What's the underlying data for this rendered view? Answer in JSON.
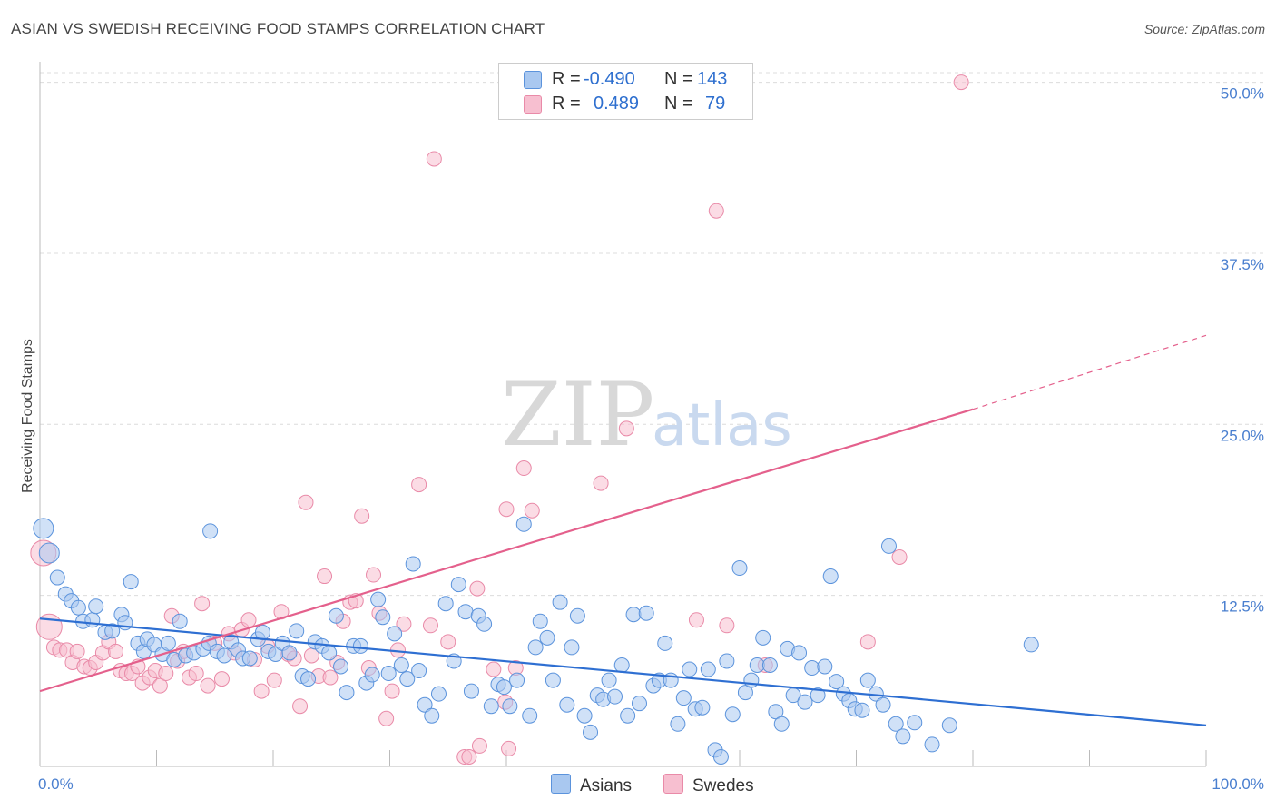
{
  "title": "ASIAN VS SWEDISH RECEIVING FOOD STAMPS CORRELATION CHART",
  "source": "Source: ZipAtlas.com",
  "watermark": {
    "zip": "ZIP",
    "atlas": "atlas"
  },
  "legend": {
    "rows": [
      {
        "r_label": "R =",
        "r_value": "-0.490",
        "n_label": "N =",
        "n_value": "143"
      },
      {
        "r_label": "R =",
        "r_value": "0.489",
        "n_label": "N =",
        "n_value": "79"
      }
    ]
  },
  "bottom_legend": {
    "asians": "Asians",
    "swedes": "Swedes"
  },
  "colors": {
    "asian_fill": "#a9c8f0",
    "asian_stroke": "#5b93dc",
    "asian_line": "#2e6fd2",
    "swede_fill": "#f7bfd0",
    "swede_stroke": "#e98aa8",
    "swede_line": "#e4608c",
    "grid": "#dcdcdc",
    "tick": "#4a7fcf"
  },
  "chart_data": {
    "type": "scatter",
    "title": "ASIAN VS SWEDISH RECEIVING FOOD STAMPS CORRELATION CHART",
    "xlabel": "",
    "ylabel": "Receiving Food Stamps",
    "xlim": [
      0,
      100
    ],
    "ylim": [
      0,
      51.5
    ],
    "x_tick_labels": [
      "0.0%",
      "100.0%"
    ],
    "y_ticks": [
      12.5,
      25.0,
      37.5,
      50.0
    ],
    "y_tick_labels": [
      "12.5%",
      "25.0%",
      "37.5%",
      "50.0%"
    ],
    "grid": true,
    "legend_position": "top-center",
    "series": [
      {
        "name": "Asians",
        "r": -0.49,
        "n": 143,
        "trend": {
          "x": [
            0,
            100
          ],
          "y": [
            10.8,
            3.0
          ]
        },
        "points": [
          [
            0.3,
            17.4
          ],
          [
            0.8,
            15.6
          ],
          [
            1.5,
            13.8
          ],
          [
            2.2,
            12.6
          ],
          [
            2.7,
            12.1
          ],
          [
            3.3,
            11.6
          ],
          [
            3.7,
            10.6
          ],
          [
            4.5,
            10.7
          ],
          [
            4.8,
            11.7
          ],
          [
            5.6,
            9.8
          ],
          [
            6.2,
            9.9
          ],
          [
            7.0,
            11.1
          ],
          [
            7.3,
            10.5
          ],
          [
            7.8,
            13.5
          ],
          [
            8.4,
            9.0
          ],
          [
            8.9,
            8.4
          ],
          [
            9.2,
            9.3
          ],
          [
            9.8,
            8.9
          ],
          [
            10.5,
            8.2
          ],
          [
            11.0,
            9.0
          ],
          [
            11.5,
            7.8
          ],
          [
            12.0,
            10.6
          ],
          [
            12.5,
            8.1
          ],
          [
            13.2,
            8.3
          ],
          [
            14.0,
            8.6
          ],
          [
            14.5,
            9.0
          ],
          [
            14.6,
            17.2
          ],
          [
            15.2,
            8.4
          ],
          [
            15.8,
            8.1
          ],
          [
            16.4,
            9.1
          ],
          [
            17.0,
            8.5
          ],
          [
            17.4,
            7.9
          ],
          [
            18.0,
            7.9
          ],
          [
            18.7,
            9.3
          ],
          [
            19.1,
            9.8
          ],
          [
            19.6,
            8.4
          ],
          [
            20.2,
            8.2
          ],
          [
            20.8,
            9.0
          ],
          [
            21.4,
            8.3
          ],
          [
            22.0,
            9.9
          ],
          [
            22.5,
            6.6
          ],
          [
            23.0,
            6.4
          ],
          [
            23.6,
            9.1
          ],
          [
            24.2,
            8.8
          ],
          [
            24.8,
            8.3
          ],
          [
            25.4,
            11.0
          ],
          [
            25.8,
            7.3
          ],
          [
            26.3,
            5.4
          ],
          [
            26.9,
            8.8
          ],
          [
            27.5,
            8.8
          ],
          [
            28.0,
            6.1
          ],
          [
            28.5,
            6.7
          ],
          [
            29.0,
            12.2
          ],
          [
            29.4,
            10.9
          ],
          [
            29.9,
            6.8
          ],
          [
            30.4,
            9.7
          ],
          [
            31.0,
            7.4
          ],
          [
            31.5,
            6.4
          ],
          [
            32.0,
            14.8
          ],
          [
            32.5,
            7.0
          ],
          [
            33.0,
            4.5
          ],
          [
            33.6,
            3.7
          ],
          [
            34.2,
            5.3
          ],
          [
            34.8,
            11.9
          ],
          [
            35.5,
            7.7
          ],
          [
            35.9,
            13.3
          ],
          [
            36.5,
            11.3
          ],
          [
            37.0,
            5.5
          ],
          [
            37.6,
            11.0
          ],
          [
            38.1,
            10.4
          ],
          [
            38.7,
            4.4
          ],
          [
            39.3,
            6.0
          ],
          [
            39.8,
            5.8
          ],
          [
            40.3,
            4.4
          ],
          [
            40.9,
            6.3
          ],
          [
            41.5,
            17.7
          ],
          [
            42.0,
            3.7
          ],
          [
            42.5,
            8.7
          ],
          [
            42.9,
            10.6
          ],
          [
            43.5,
            9.4
          ],
          [
            44.0,
            6.3
          ],
          [
            44.6,
            12.0
          ],
          [
            45.2,
            4.5
          ],
          [
            45.6,
            8.7
          ],
          [
            46.1,
            11.0
          ],
          [
            46.7,
            3.7
          ],
          [
            47.2,
            2.5
          ],
          [
            47.8,
            5.2
          ],
          [
            48.3,
            4.9
          ],
          [
            48.8,
            6.3
          ],
          [
            49.3,
            5.1
          ],
          [
            49.9,
            7.4
          ],
          [
            50.4,
            3.7
          ],
          [
            50.9,
            11.1
          ],
          [
            51.4,
            4.6
          ],
          [
            52.0,
            11.2
          ],
          [
            52.6,
            5.9
          ],
          [
            53.1,
            6.3
          ],
          [
            53.6,
            9.0
          ],
          [
            54.1,
            6.3
          ],
          [
            54.7,
            3.1
          ],
          [
            55.2,
            5.0
          ],
          [
            55.7,
            7.1
          ],
          [
            56.2,
            4.2
          ],
          [
            56.8,
            4.3
          ],
          [
            57.3,
            7.1
          ],
          [
            57.9,
            1.2
          ],
          [
            58.4,
            0.7
          ],
          [
            58.9,
            7.7
          ],
          [
            59.4,
            3.8
          ],
          [
            60.0,
            14.5
          ],
          [
            60.5,
            5.4
          ],
          [
            61.0,
            6.3
          ],
          [
            61.5,
            7.4
          ],
          [
            62.0,
            9.4
          ],
          [
            62.6,
            7.4
          ],
          [
            63.1,
            4.0
          ],
          [
            63.6,
            3.1
          ],
          [
            64.1,
            8.6
          ],
          [
            64.6,
            5.2
          ],
          [
            65.1,
            8.3
          ],
          [
            65.6,
            4.7
          ],
          [
            66.2,
            7.2
          ],
          [
            66.7,
            5.2
          ],
          [
            67.3,
            7.3
          ],
          [
            67.8,
            13.9
          ],
          [
            68.3,
            6.2
          ],
          [
            68.9,
            5.3
          ],
          [
            69.4,
            4.8
          ],
          [
            69.9,
            4.2
          ],
          [
            70.5,
            4.1
          ],
          [
            71.0,
            6.3
          ],
          [
            71.7,
            5.3
          ],
          [
            72.3,
            4.5
          ],
          [
            72.8,
            16.1
          ],
          [
            73.4,
            3.1
          ],
          [
            74.0,
            2.2
          ],
          [
            75.0,
            3.2
          ],
          [
            76.5,
            1.6
          ],
          [
            78.0,
            3.0
          ],
          [
            85.0,
            8.9
          ]
        ]
      },
      {
        "name": "Swedes",
        "r": 0.489,
        "n": 79,
        "trend": {
          "x": [
            0,
            80
          ],
          "y": [
            5.5,
            26.1
          ]
        },
        "trend_dashed": {
          "x": [
            80,
            100
          ],
          "y": [
            26.1,
            31.5
          ]
        },
        "points": [
          [
            0.3,
            15.6
          ],
          [
            0.8,
            10.2
          ],
          [
            1.2,
            8.7
          ],
          [
            1.7,
            8.5
          ],
          [
            2.3,
            8.5
          ],
          [
            2.8,
            7.6
          ],
          [
            3.2,
            8.4
          ],
          [
            3.8,
            7.3
          ],
          [
            4.3,
            7.2
          ],
          [
            4.8,
            7.6
          ],
          [
            5.4,
            8.3
          ],
          [
            5.9,
            9.1
          ],
          [
            6.5,
            8.4
          ],
          [
            6.9,
            7.0
          ],
          [
            7.4,
            6.8
          ],
          [
            7.9,
            6.8
          ],
          [
            8.4,
            7.3
          ],
          [
            8.8,
            6.1
          ],
          [
            9.4,
            6.5
          ],
          [
            9.9,
            7.0
          ],
          [
            10.3,
            5.9
          ],
          [
            10.8,
            6.8
          ],
          [
            11.3,
            11.0
          ],
          [
            11.8,
            7.7
          ],
          [
            12.3,
            8.4
          ],
          [
            12.8,
            6.5
          ],
          [
            13.4,
            6.8
          ],
          [
            13.9,
            11.9
          ],
          [
            14.4,
            5.9
          ],
          [
            15.0,
            9.0
          ],
          [
            15.6,
            6.4
          ],
          [
            16.2,
            9.7
          ],
          [
            16.7,
            8.3
          ],
          [
            17.3,
            10.0
          ],
          [
            17.9,
            10.7
          ],
          [
            18.4,
            7.8
          ],
          [
            19.0,
            5.5
          ],
          [
            19.5,
            8.8
          ],
          [
            20.1,
            6.3
          ],
          [
            20.7,
            11.3
          ],
          [
            21.3,
            8.2
          ],
          [
            21.8,
            7.9
          ],
          [
            22.3,
            4.4
          ],
          [
            22.8,
            19.3
          ],
          [
            23.3,
            8.1
          ],
          [
            23.9,
            6.6
          ],
          [
            24.4,
            13.9
          ],
          [
            24.9,
            6.5
          ],
          [
            25.5,
            7.6
          ],
          [
            26.0,
            10.6
          ],
          [
            26.6,
            12.0
          ],
          [
            27.1,
            12.1
          ],
          [
            27.6,
            18.3
          ],
          [
            28.2,
            7.2
          ],
          [
            28.6,
            14.0
          ],
          [
            29.1,
            11.2
          ],
          [
            29.7,
            3.5
          ],
          [
            30.2,
            5.5
          ],
          [
            30.7,
            8.5
          ],
          [
            31.2,
            10.4
          ],
          [
            32.5,
            20.6
          ],
          [
            33.5,
            10.3
          ],
          [
            33.8,
            44.4
          ],
          [
            35.0,
            9.1
          ],
          [
            36.4,
            0.7
          ],
          [
            36.8,
            0.7
          ],
          [
            37.5,
            13.0
          ],
          [
            37.7,
            1.5
          ],
          [
            38.9,
            7.1
          ],
          [
            39.9,
            4.7
          ],
          [
            40.0,
            18.8
          ],
          [
            40.2,
            1.3
          ],
          [
            40.8,
            7.2
          ],
          [
            41.5,
            21.8
          ],
          [
            42.2,
            18.7
          ],
          [
            48.1,
            20.7
          ],
          [
            50.3,
            24.7
          ],
          [
            56.3,
            10.7
          ],
          [
            58.0,
            40.6
          ],
          [
            58.9,
            10.3
          ],
          [
            62.2,
            7.4
          ],
          [
            71.0,
            9.1
          ],
          [
            73.7,
            15.3
          ],
          [
            79.0,
            50.0
          ]
        ]
      }
    ]
  }
}
